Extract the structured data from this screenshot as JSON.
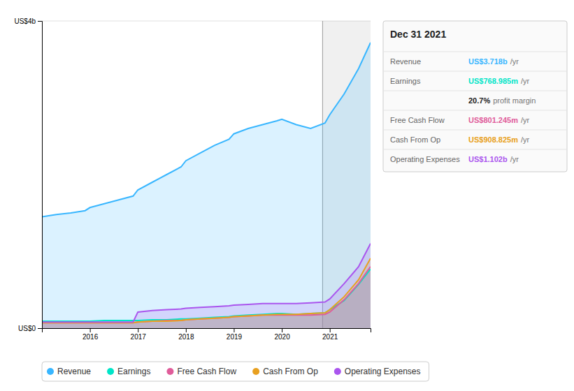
{
  "chart_data": {
    "type": "area",
    "title": "Dec 31 2021",
    "x": [
      2015.0,
      2015.3,
      2015.6,
      2015.9,
      2016.0,
      2016.3,
      2016.6,
      2016.9,
      2017.0,
      2017.3,
      2017.6,
      2017.9,
      2018.0,
      2018.3,
      2018.6,
      2018.9,
      2019.0,
      2019.3,
      2019.6,
      2019.9,
      2020.0,
      2020.3,
      2020.6,
      2020.9,
      2021.0,
      2021.3,
      2021.6,
      2021.85
    ],
    "series": [
      {
        "name": "Revenue",
        "color": "#38b6ff",
        "values": [
          1.45,
          1.48,
          1.5,
          1.53,
          1.57,
          1.62,
          1.67,
          1.72,
          1.8,
          1.9,
          2.0,
          2.1,
          2.18,
          2.28,
          2.38,
          2.46,
          2.53,
          2.6,
          2.65,
          2.7,
          2.72,
          2.65,
          2.6,
          2.67,
          2.78,
          3.05,
          3.38,
          3.718
        ]
      },
      {
        "name": "Earnings",
        "color": "#00e5c8",
        "values": [
          0.09,
          0.09,
          0.09,
          0.09,
          0.09,
          0.1,
          0.1,
          0.1,
          0.1,
          0.11,
          0.11,
          0.12,
          0.12,
          0.13,
          0.14,
          0.15,
          0.16,
          0.17,
          0.18,
          0.19,
          0.19,
          0.18,
          0.19,
          0.2,
          0.24,
          0.36,
          0.57,
          0.769
        ]
      },
      {
        "name": "Free Cash Flow",
        "color": "#e05c9a",
        "values": [
          0.07,
          0.07,
          0.07,
          0.07,
          0.07,
          0.07,
          0.07,
          0.07,
          0.08,
          0.09,
          0.1,
          0.1,
          0.11,
          0.12,
          0.13,
          0.14,
          0.15,
          0.16,
          0.17,
          0.17,
          0.17,
          0.17,
          0.17,
          0.18,
          0.21,
          0.37,
          0.58,
          0.801
        ]
      },
      {
        "name": "Cash From Op",
        "color": "#e8a020",
        "values": [
          0.07,
          0.07,
          0.07,
          0.07,
          0.07,
          0.07,
          0.07,
          0.07,
          0.08,
          0.09,
          0.09,
          0.1,
          0.11,
          0.12,
          0.13,
          0.14,
          0.15,
          0.16,
          0.17,
          0.18,
          0.18,
          0.18,
          0.19,
          0.2,
          0.24,
          0.41,
          0.63,
          0.909
        ]
      },
      {
        "name": "Operating Expenses",
        "color": "#aa55ee",
        "values": [
          0.08,
          0.08,
          0.08,
          0.08,
          0.08,
          0.08,
          0.08,
          0.08,
          0.21,
          0.23,
          0.24,
          0.25,
          0.26,
          0.27,
          0.28,
          0.29,
          0.3,
          0.31,
          0.32,
          0.32,
          0.32,
          0.32,
          0.33,
          0.34,
          0.38,
          0.58,
          0.8,
          1.102
        ]
      }
    ],
    "xlim": [
      2015.0,
      2021.85
    ],
    "xticks": [
      2016,
      2017,
      2018,
      2019,
      2020,
      2021
    ],
    "ylim": [
      0,
      4.0
    ],
    "yticks": [
      {
        "value": 0,
        "label": "US$0"
      },
      {
        "value": 4.0,
        "label": "US$4b"
      }
    ],
    "grid": true,
    "legend": "bottom",
    "highlight": [
      2020.85,
      2021.85
    ],
    "annotations": [
      {
        "label": "Revenue",
        "text": "US$3.718b",
        "suffix": "/yr",
        "color": "#38b6ff"
      },
      {
        "label": "Earnings",
        "text": "US$768.985m",
        "suffix": "/yr",
        "color": "#00e5c8"
      },
      {
        "text": "20.7%",
        "suffix": "profit margin"
      },
      {
        "label": "Free Cash Flow",
        "text": "US$801.245m",
        "suffix": "/yr",
        "color": "#e05c9a"
      },
      {
        "label": "Cash From Op",
        "text": "US$908.825m",
        "suffix": "/yr",
        "color": "#e8a020"
      },
      {
        "label": "Operating Expenses",
        "text": "US$1.102b",
        "suffix": "/yr",
        "color": "#aa55ee"
      }
    ]
  }
}
